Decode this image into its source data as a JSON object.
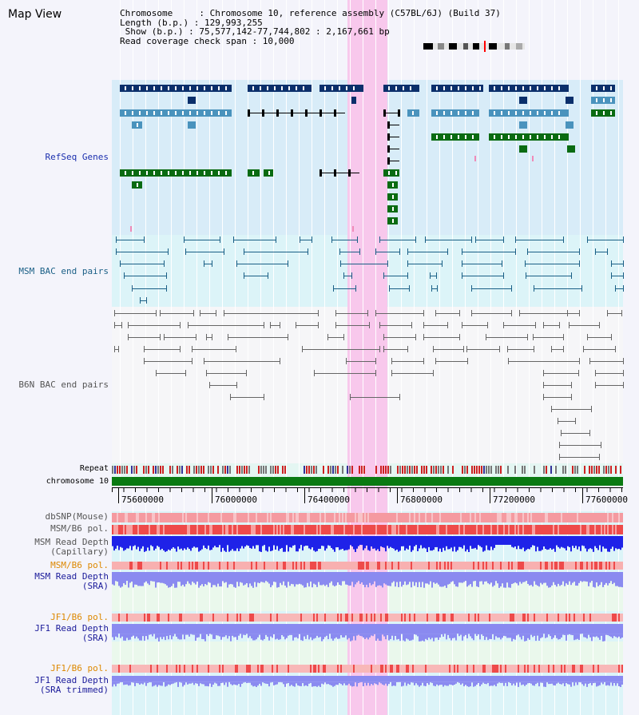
{
  "title": "Map View",
  "info": {
    "chromosome": "Chromosome     : Chromosome 10, reference assembly (C57BL/6J) (Build 37)",
    "length": "Length (b.p.) : 129,993,255",
    "show": " Show (b.p.) : 75,577,142-77,744,802 : 2,167,661 bp",
    "coverage": "Read coverage check span : 10,000"
  },
  "tracks": {
    "refseq": "RefSeq Genes",
    "msm_bac": "MSM BAC end pairs",
    "b6n_bac": "B6N BAC end pairs",
    "repeat": "Repeat",
    "chromosome": "chromosome 10",
    "dbsnp": "dbSNP(Mouse)",
    "msm_pol": "MSM/B6 pol.",
    "msm_depth_cap_1": "MSM Read Depth",
    "msm_depth_cap_2": "(Capillary)",
    "msm_pol_2": "MSM/B6 pol.",
    "msm_depth_sra_1": "MSM Read Depth",
    "msm_depth_sra_2": "(SRA)",
    "jf1_pol": "JF1/B6 pol.",
    "jf1_depth_sra_1": "JF1 Read Depth",
    "jf1_depth_sra_2": "(SRA)",
    "jf1_pol_2": "JF1/B6 pol.",
    "jf1_depth_trim_1": "JF1 Read Depth",
    "jf1_depth_trim_2": "(SRA trimmed)"
  },
  "axis": {
    "ticks": [
      "75600000",
      "76000000",
      "76400000",
      "76800000",
      "77200000",
      "77600000"
    ]
  },
  "colors": {
    "refseq_dark": "#0b2f6b",
    "refseq_light": "#4a93bd",
    "refseq_green": "#0a6b12",
    "msm_bac": "#1a5f86",
    "b6n_bac": "#666666",
    "highlight": "#f8c8ec",
    "snp": "#f59aa0",
    "pol": "#ee4a4a",
    "depth_cap": "#1f22e8",
    "depth_sra": "#8a8af0",
    "label_blue": "#1b2fae",
    "label_teal": "#1a5f86",
    "label_gray": "#555555",
    "label_orange": "#dd8800",
    "label_navy": "#1a1a9a"
  }
}
